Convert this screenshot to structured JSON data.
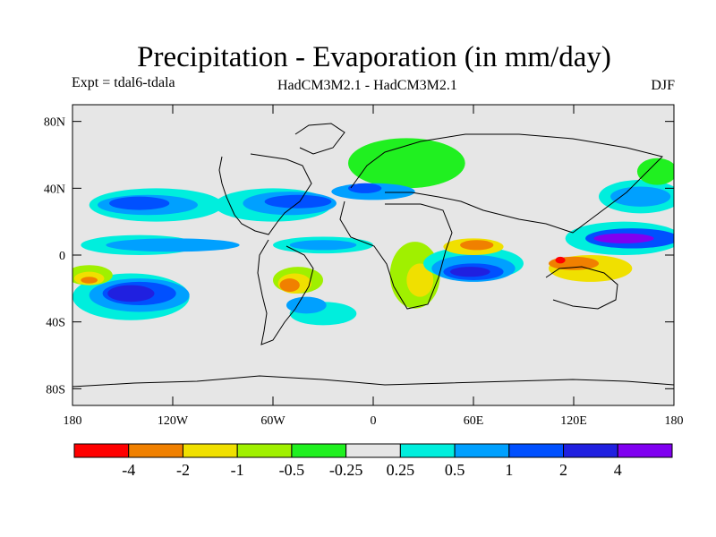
{
  "figure": {
    "title": "Precipitation - Evaporation (in mm/day)",
    "experiment": "Expt = tdal6-tdala",
    "subtitle": "HadCM3M2.1 - HadCM3M2.1",
    "season": "DJF"
  },
  "map": {
    "projection": "cylindrical-equidistant",
    "lon_range": [
      -180,
      180
    ],
    "lat_range": [
      -90,
      90
    ],
    "ocean_background": "#e6e6e6",
    "coastline_color": "#000000",
    "lat_ticks": [
      {
        "value": 80,
        "label": "80N"
      },
      {
        "value": 40,
        "label": "40N"
      },
      {
        "value": 0,
        "label": "0"
      },
      {
        "value": -40,
        "label": "40S"
      },
      {
        "value": -80,
        "label": "80S"
      }
    ],
    "lon_ticks": [
      {
        "value": -180,
        "label": "180"
      },
      {
        "value": -120,
        "label": "120W"
      },
      {
        "value": -60,
        "label": "60W"
      },
      {
        "value": 0,
        "label": "0"
      },
      {
        "value": 60,
        "label": "60E"
      },
      {
        "value": 120,
        "label": "120E"
      },
      {
        "value": 180,
        "label": "180"
      }
    ],
    "regions": [
      {
        "level": "+0.25..0.5",
        "color": "#00eedd",
        "lon": -130,
        "lat": 30,
        "rx": 40,
        "ry": 10
      },
      {
        "level": "+0.5..1",
        "color": "#00a0ff",
        "lon": -135,
        "lat": 30,
        "rx": 30,
        "ry": 6
      },
      {
        "level": "+1..2",
        "color": "#0050ff",
        "lon": -140,
        "lat": 31,
        "rx": 18,
        "ry": 4
      },
      {
        "level": "+0.25..0.5",
        "color": "#00eedd",
        "lon": -140,
        "lat": 6,
        "rx": 35,
        "ry": 6
      },
      {
        "level": "+0.5..1",
        "color": "#00a0ff",
        "lon": -120,
        "lat": 6,
        "rx": 40,
        "ry": 4
      },
      {
        "level": "+0.25..0.5",
        "color": "#00eedd",
        "lon": -145,
        "lat": -25,
        "rx": 35,
        "ry": 14
      },
      {
        "level": "+0.5..1",
        "color": "#00a0ff",
        "lon": -140,
        "lat": -24,
        "rx": 30,
        "ry": 10
      },
      {
        "level": "+1..2",
        "color": "#0050ff",
        "lon": -140,
        "lat": -23,
        "rx": 22,
        "ry": 7
      },
      {
        "level": "+2..4",
        "color": "#2020e0",
        "lon": -145,
        "lat": -23,
        "rx": 14,
        "ry": 5
      },
      {
        "level": "-1..-0.5",
        "color": "#a0f000",
        "lon": -170,
        "lat": -12,
        "rx": 14,
        "ry": 6
      },
      {
        "level": "-2..-1",
        "color": "#f0e000",
        "lon": -170,
        "lat": -14,
        "rx": 9,
        "ry": 4
      },
      {
        "level": "-4..-2",
        "color": "#f08000",
        "lon": -170,
        "lat": -15,
        "rx": 5,
        "ry": 2
      },
      {
        "level": "+0.25..0.5",
        "color": "#00eedd",
        "lon": -60,
        "lat": 30,
        "rx": 35,
        "ry": 10
      },
      {
        "level": "+0.5..1",
        "color": "#00a0ff",
        "lon": -50,
        "lat": 31,
        "rx": 28,
        "ry": 7
      },
      {
        "level": "+1..2",
        "color": "#0050ff",
        "lon": -45,
        "lat": 32,
        "rx": 20,
        "ry": 4
      },
      {
        "level": "+0.25..0.5",
        "color": "#00eedd",
        "lon": -30,
        "lat": 6,
        "rx": 30,
        "ry": 5
      },
      {
        "level": "+0.5..1",
        "color": "#00a0ff",
        "lon": -30,
        "lat": 6,
        "rx": 20,
        "ry": 3
      },
      {
        "level": "-1..-0.5",
        "color": "#a0f000",
        "lon": -45,
        "lat": -15,
        "rx": 15,
        "ry": 8
      },
      {
        "level": "-2..-1",
        "color": "#f0e000",
        "lon": -47,
        "lat": -17,
        "rx": 10,
        "ry": 6
      },
      {
        "level": "-4..-2",
        "color": "#f08000",
        "lon": -50,
        "lat": -18,
        "rx": 6,
        "ry": 4
      },
      {
        "level": "+0.25..0.5",
        "color": "#00eedd",
        "lon": -30,
        "lat": -35,
        "rx": 20,
        "ry": 7
      },
      {
        "level": "+0.5..1",
        "color": "#00a0ff",
        "lon": -40,
        "lat": -30,
        "rx": 12,
        "ry": 5
      },
      {
        "level": "-0.5..-0.25",
        "color": "#20f020",
        "lon": 20,
        "lat": 55,
        "rx": 35,
        "ry": 15
      },
      {
        "level": "+0.5..1",
        "color": "#00a0ff",
        "lon": 0,
        "lat": 38,
        "rx": 25,
        "ry": 5
      },
      {
        "level": "+1..2",
        "color": "#0050ff",
        "lon": -5,
        "lat": 40,
        "rx": 10,
        "ry": 3
      },
      {
        "level": "-1..-0.5",
        "color": "#a0f000",
        "lon": 25,
        "lat": -12,
        "rx": 15,
        "ry": 20
      },
      {
        "level": "-2..-1",
        "color": "#f0e000",
        "lon": 28,
        "lat": -15,
        "rx": 8,
        "ry": 10
      },
      {
        "level": "+0.25..0.5",
        "color": "#00eedd",
        "lon": 60,
        "lat": -5,
        "rx": 30,
        "ry": 10
      },
      {
        "level": "+0.5..1",
        "color": "#00a0ff",
        "lon": 60,
        "lat": -8,
        "rx": 25,
        "ry": 8
      },
      {
        "level": "+1..2",
        "color": "#0050ff",
        "lon": 60,
        "lat": -10,
        "rx": 18,
        "ry": 5
      },
      {
        "level": "+2..4",
        "color": "#2020e0",
        "lon": 58,
        "lat": -10,
        "rx": 12,
        "ry": 3
      },
      {
        "level": "-2..-1",
        "color": "#f0e000",
        "lon": 60,
        "lat": 5,
        "rx": 18,
        "ry": 5
      },
      {
        "level": "-4..-2",
        "color": "#f08000",
        "lon": 62,
        "lat": 6,
        "rx": 10,
        "ry": 3
      },
      {
        "level": "+0.25..0.5",
        "color": "#00eedd",
        "lon": 150,
        "lat": 10,
        "rx": 35,
        "ry": 10
      },
      {
        "level": "+1..2",
        "color": "#0050ff",
        "lon": 155,
        "lat": 10,
        "rx": 28,
        "ry": 6
      },
      {
        "level": "+4+",
        "color": "#8000f0",
        "lon": 150,
        "lat": 10,
        "rx": 18,
        "ry": 3
      },
      {
        "level": "-2..-1",
        "color": "#f0e000",
        "lon": 130,
        "lat": -8,
        "rx": 25,
        "ry": 8
      },
      {
        "level": "-4..-2",
        "color": "#f08000",
        "lon": 120,
        "lat": -5,
        "rx": 15,
        "ry": 4
      },
      {
        "level": "<-4",
        "color": "#ff0000",
        "lon": 112,
        "lat": -3,
        "rx": 3,
        "ry": 2
      },
      {
        "level": "+0.25..0.5",
        "color": "#00eedd",
        "lon": 160,
        "lat": 35,
        "rx": 25,
        "ry": 10
      },
      {
        "level": "+0.5..1",
        "color": "#00a0ff",
        "lon": 160,
        "lat": 35,
        "rx": 18,
        "ry": 6
      },
      {
        "level": "-0.5..-0.25",
        "color": "#20f020",
        "lon": 170,
        "lat": 50,
        "rx": 12,
        "ry": 8
      }
    ]
  },
  "colorbar": {
    "colors": [
      "#ff0000",
      "#f08000",
      "#f0e000",
      "#a0f000",
      "#20f020",
      "#e6e6e6",
      "#00eedd",
      "#00a0ff",
      "#0050ff",
      "#2020e0",
      "#8000f0"
    ],
    "labels": [
      "-4",
      "-2",
      "-1",
      "-0.5",
      "-0.25",
      "0.25",
      "0.5",
      "1",
      "2",
      "4"
    ]
  }
}
